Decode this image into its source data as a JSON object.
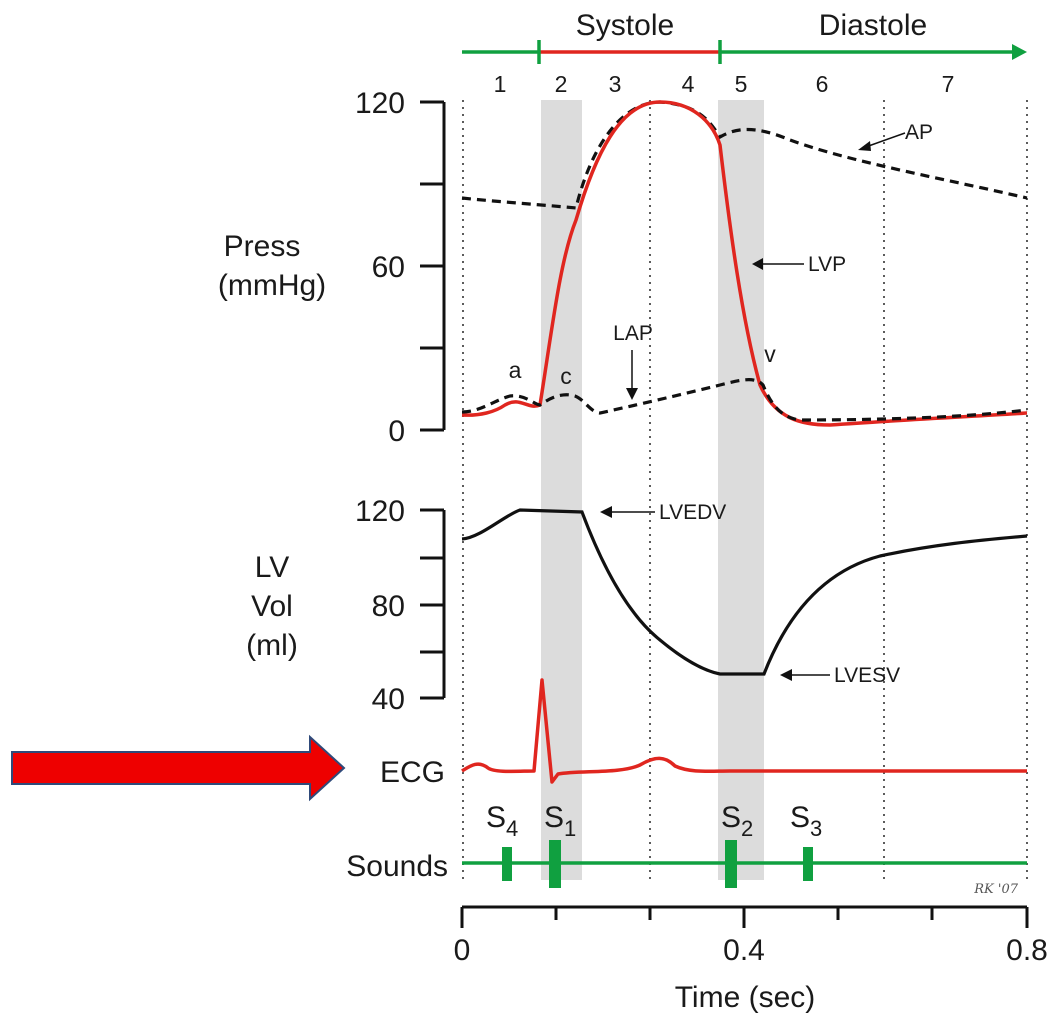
{
  "phases": {
    "systole": "Systole",
    "diastole": "Diastole",
    "numbers": [
      "1",
      "2",
      "3",
      "4",
      "5",
      "6",
      "7"
    ]
  },
  "pressure": {
    "label_line1": "Press",
    "label_line2": "(mmHg)",
    "ticks": [
      "120",
      "60",
      "0"
    ],
    "curves": {
      "ap": "AP",
      "lvp": "LVP",
      "lap": "LAP"
    },
    "waves": {
      "a": "a",
      "c": "c",
      "v": "v"
    }
  },
  "volume": {
    "label_line1": "LV",
    "label_line2": "Vol",
    "label_line3": "(ml)",
    "ticks": [
      "120",
      "80",
      "40"
    ],
    "curves": {
      "lvedv": "LVEDV",
      "lvesv": "LVESV"
    }
  },
  "ecg": {
    "label": "ECG"
  },
  "sounds": {
    "label": "Sounds",
    "items": [
      {
        "main": "S",
        "sub": "4"
      },
      {
        "main": "S",
        "sub": "1"
      },
      {
        "main": "S",
        "sub": "2"
      },
      {
        "main": "S",
        "sub": "3"
      }
    ]
  },
  "time_axis": {
    "label": "Time (sec)",
    "ticks": [
      "0",
      "0.4",
      "0.8"
    ]
  },
  "signature": "RK '07",
  "colors": {
    "red_curve": "#e0261f",
    "green_track": "#10a040",
    "arrow": "#ee0000",
    "band": "#d6d6d6"
  }
}
